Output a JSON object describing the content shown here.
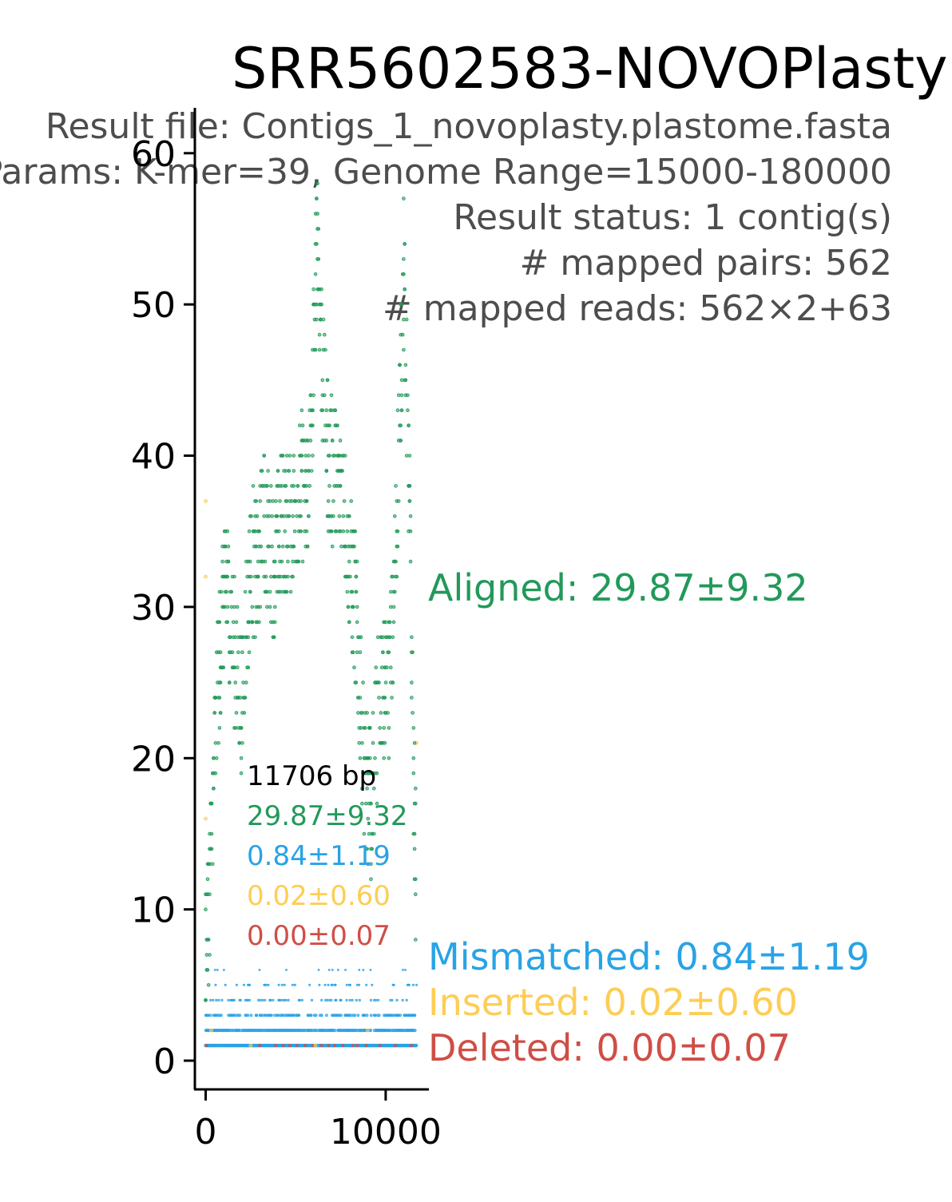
{
  "colors": {
    "aligned": "#22995a",
    "mismatched": "#29a3e6",
    "inserted": "#fdcd55",
    "deleted": "#cf4e46",
    "subtitle": "#4d4d4d",
    "axis": "#000000"
  },
  "title": "SRR5602583-NOVOPlasty",
  "subtitle_lines": [
    "Result file: Contigs_1_novoplasty.plastome.fasta",
    "Params: K-mer=39, Genome Range=15000-180000",
    "Result status: 1 contig(s)",
    "# mapped pairs: 562",
    "# mapped reads: 562×2+63"
  ],
  "inset": {
    "length": "11706 bp",
    "aligned": "29.87±9.32",
    "mismatched": "0.84±1.19",
    "inserted": "0.02±0.60",
    "deleted": "0.00±0.07"
  },
  "side_labels": {
    "aligned": "Aligned: 29.87±9.32",
    "mismatched": "Mismatched: 0.84±1.19",
    "inserted": "Inserted: 0.02±0.60",
    "deleted": "Deleted: 0.00±0.07"
  },
  "chart_data": {
    "type": "scatter",
    "title": "SRR5602583-NOVOPlasty",
    "xlabel": "",
    "ylabel": "",
    "xlim": [
      -600,
      12400
    ],
    "ylim": [
      -1.9,
      63
    ],
    "x_ticks": [
      0,
      10000
    ],
    "y_ticks": [
      0,
      10,
      20,
      30,
      40,
      50,
      60
    ],
    "grid": false,
    "contig_length": 11706,
    "series": [
      {
        "name": "Aligned",
        "mean": 29.87,
        "sd": 9.32,
        "profile_x": [
          0,
          150,
          300,
          500,
          700,
          900,
          1100,
          1300,
          1500,
          1700,
          2000,
          2300,
          2600,
          2900,
          3200,
          3500,
          3800,
          4100,
          4400,
          4700,
          5000,
          5300,
          5600,
          5900,
          6200,
          6500,
          6800,
          7100,
          7400,
          7700,
          8000,
          8300,
          8600,
          8900,
          9200,
          9500,
          9800,
          10100,
          10400,
          10700,
          11000,
          11300,
          11500,
          11706
        ],
        "profile_y": [
          8,
          10,
          14,
          20,
          25,
          29,
          32,
          30,
          28,
          26,
          24,
          30,
          33,
          32,
          36,
          34,
          33,
          35,
          36,
          35,
          37,
          38,
          37,
          42,
          56,
          45,
          40,
          39,
          38,
          37,
          33,
          30,
          24,
          18,
          17,
          22,
          25,
          24,
          28,
          40,
          52,
          38,
          22,
          11
        ]
      },
      {
        "name": "Mismatched",
        "mean": 0.84,
        "sd": 1.19
      },
      {
        "name": "Inserted",
        "mean": 0.02,
        "sd": 0.6
      },
      {
        "name": "Deleted",
        "mean": 0.0,
        "sd": 0.07
      }
    ]
  }
}
